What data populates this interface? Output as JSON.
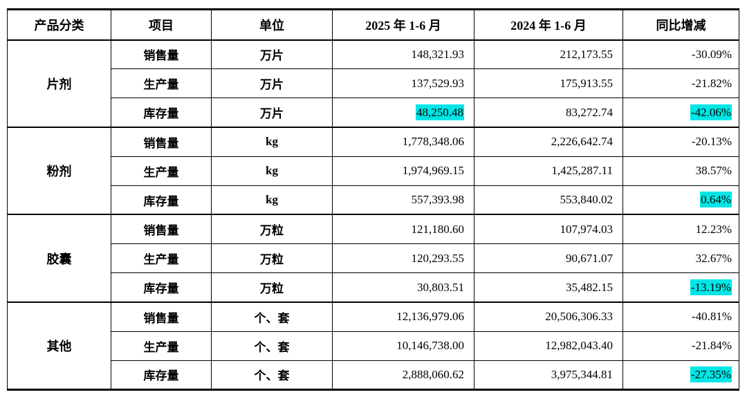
{
  "table": {
    "headers": [
      "产品分类",
      "项目",
      "单位",
      "2025 年 1-6 月",
      "2024 年 1-6 月",
      "同比增减"
    ],
    "groups": [
      {
        "category": "片剂",
        "rows": [
          {
            "item": "销售量",
            "unit": "万片",
            "v2025": "148,321.93",
            "v2024": "212,173.55",
            "yoy": "-30.09%",
            "hl_2025": false,
            "hl_yoy": false
          },
          {
            "item": "生产量",
            "unit": "万片",
            "v2025": "137,529.93",
            "v2024": "175,913.55",
            "yoy": "-21.82%",
            "hl_2025": false,
            "hl_yoy": false
          },
          {
            "item": "库存量",
            "unit": "万片",
            "v2025": "48,250.48",
            "v2024": "83,272.74",
            "yoy": "-42.06%",
            "hl_2025": true,
            "hl_yoy": true
          }
        ]
      },
      {
        "category": "粉剂",
        "rows": [
          {
            "item": "销售量",
            "unit": "kg",
            "v2025": "1,778,348.06",
            "v2024": "2,226,642.74",
            "yoy": "-20.13%",
            "hl_2025": false,
            "hl_yoy": false
          },
          {
            "item": "生产量",
            "unit": "kg",
            "v2025": "1,974,969.15",
            "v2024": "1,425,287.11",
            "yoy": "38.57%",
            "hl_2025": false,
            "hl_yoy": false
          },
          {
            "item": "库存量",
            "unit": "kg",
            "v2025": "557,393.98",
            "v2024": "553,840.02",
            "yoy": "0.64%",
            "hl_2025": false,
            "hl_yoy": true
          }
        ]
      },
      {
        "category": "胶囊",
        "rows": [
          {
            "item": "销售量",
            "unit": "万粒",
            "v2025": "121,180.60",
            "v2024": "107,974.03",
            "yoy": "12.23%",
            "hl_2025": false,
            "hl_yoy": false
          },
          {
            "item": "生产量",
            "unit": "万粒",
            "v2025": "120,293.55",
            "v2024": "90,671.07",
            "yoy": "32.67%",
            "hl_2025": false,
            "hl_yoy": false
          },
          {
            "item": "库存量",
            "unit": "万粒",
            "v2025": "30,803.51",
            "v2024": "35,482.15",
            "yoy": "-13.19%",
            "hl_2025": false,
            "hl_yoy": true
          }
        ]
      },
      {
        "category": "其他",
        "rows": [
          {
            "item": "销售量",
            "unit": "个、套",
            "v2025": "12,136,979.06",
            "v2024": "20,506,306.33",
            "yoy": "-40.81%",
            "hl_2025": false,
            "hl_yoy": false
          },
          {
            "item": "生产量",
            "unit": "个、套",
            "v2025": "10,146,738.00",
            "v2024": "12,982,043.40",
            "yoy": "-21.84%",
            "hl_2025": false,
            "hl_yoy": false
          },
          {
            "item": "库存量",
            "unit": "个、套",
            "v2025": "2,888,060.62",
            "v2024": "3,975,344.81",
            "yoy": "-27.35%",
            "hl_2025": false,
            "hl_yoy": true
          }
        ]
      }
    ]
  },
  "colors": {
    "highlight_hex": "#00e6e6"
  }
}
